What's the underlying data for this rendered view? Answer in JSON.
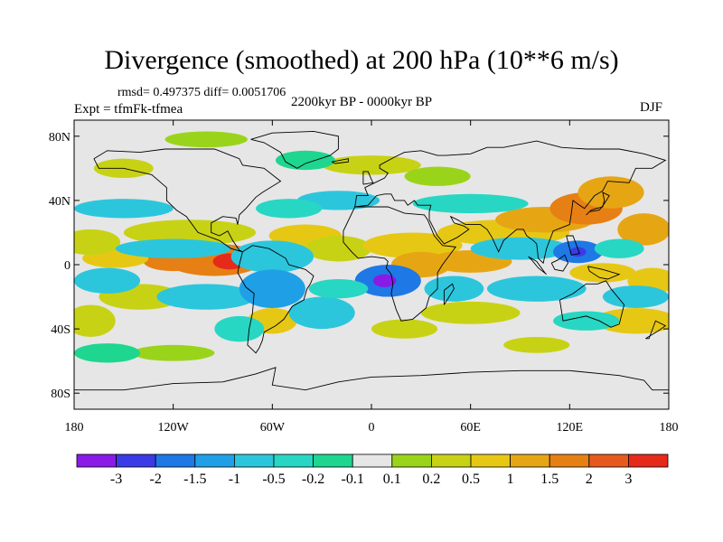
{
  "figure": {
    "title": "Divergence (smoothed) at 200 hPa (10**6 m/s)",
    "stats": "rmsd= 0.497375 diff= 0.0051706",
    "experiment": "Expt = tfmFk-tfmea",
    "period": "2200kyr BP - 0000kyr BP",
    "season": "DJF"
  },
  "axes": {
    "lon_ticks": [
      {
        "value": -180,
        "label": "180"
      },
      {
        "value": -120,
        "label": "120W"
      },
      {
        "value": -60,
        "label": "60W"
      },
      {
        "value": 0,
        "label": "0"
      },
      {
        "value": 60,
        "label": "60E"
      },
      {
        "value": 120,
        "label": "120E"
      },
      {
        "value": 180,
        "label": "180"
      }
    ],
    "lat_ticks": [
      {
        "value": 80,
        "label": "80N"
      },
      {
        "value": 40,
        "label": "40N"
      },
      {
        "value": 0,
        "label": "0"
      },
      {
        "value": -40,
        "label": "40S"
      },
      {
        "value": -80,
        "label": "80S"
      }
    ],
    "lon_range": [
      -180,
      180
    ],
    "lat_range": [
      -90,
      90
    ]
  },
  "colorbar": {
    "colors": [
      "#8a1ae6",
      "#3a3ae6",
      "#1e78e6",
      "#1fa0e6",
      "#2cc6dc",
      "#27d7c3",
      "#1ed68f",
      "#e6e6e6",
      "#9ad41a",
      "#c8d214",
      "#e6c814",
      "#e6a614",
      "#e68014",
      "#e65a1e",
      "#e62a1a"
    ],
    "labels": [
      "-3",
      "-2",
      "-1.5",
      "-1",
      "-0.5",
      "-0.2",
      "-0.1",
      "0.1",
      "0.2",
      "0.5",
      "1",
      "1.5",
      "2",
      "3"
    ]
  },
  "map_data": {
    "type": "contour_fill",
    "field": "divergence difference",
    "blobs": [
      {
        "lon": -95,
        "lat": 3,
        "rx": 30,
        "ry": 10,
        "level": 12
      },
      {
        "lon": -86,
        "lat": 2,
        "rx": 10,
        "ry": 5,
        "level": 14
      },
      {
        "lon": -120,
        "lat": 2,
        "rx": 18,
        "ry": 6,
        "level": 12
      },
      {
        "lon": -155,
        "lat": 4,
        "rx": 20,
        "ry": 6,
        "level": 10
      },
      {
        "lon": -170,
        "lat": 14,
        "rx": 18,
        "ry": 8,
        "level": 9
      },
      {
        "lon": -110,
        "lat": 20,
        "rx": 40,
        "ry": 8,
        "level": 9
      },
      {
        "lon": -40,
        "lat": 18,
        "rx": 22,
        "ry": 7,
        "level": 10
      },
      {
        "lon": -20,
        "lat": 10,
        "rx": 20,
        "ry": 8,
        "level": 9
      },
      {
        "lon": 25,
        "lat": 12,
        "rx": 30,
        "ry": 8,
        "level": 10
      },
      {
        "lon": 30,
        "lat": 0,
        "rx": 18,
        "ry": 8,
        "level": 11
      },
      {
        "lon": 60,
        "lat": 2,
        "rx": 25,
        "ry": 7,
        "level": 11
      },
      {
        "lon": 80,
        "lat": 20,
        "rx": 40,
        "ry": 8,
        "level": 10
      },
      {
        "lon": 105,
        "lat": 28,
        "rx": 30,
        "ry": 8,
        "level": 11
      },
      {
        "lon": 130,
        "lat": 35,
        "rx": 22,
        "ry": 10,
        "level": 12
      },
      {
        "lon": 145,
        "lat": 45,
        "rx": 20,
        "ry": 10,
        "level": 11
      },
      {
        "lon": 165,
        "lat": 22,
        "rx": 16,
        "ry": 10,
        "level": 11
      },
      {
        "lon": 0,
        "lat": 62,
        "rx": 30,
        "ry": 6,
        "level": 9
      },
      {
        "lon": 40,
        "lat": 55,
        "rx": 20,
        "ry": 6,
        "level": 8
      },
      {
        "lon": -150,
        "lat": 60,
        "rx": 18,
        "ry": 6,
        "level": 9
      },
      {
        "lon": -100,
        "lat": 78,
        "rx": 25,
        "ry": 5,
        "level": 8
      },
      {
        "lon": 140,
        "lat": -5,
        "rx": 20,
        "ry": 6,
        "level": 10
      },
      {
        "lon": 170,
        "lat": -10,
        "rx": 15,
        "ry": 8,
        "level": 10
      },
      {
        "lon": 160,
        "lat": -35,
        "rx": 25,
        "ry": 8,
        "level": 10
      },
      {
        "lon": 60,
        "lat": -30,
        "rx": 30,
        "ry": 7,
        "level": 9
      },
      {
        "lon": -60,
        "lat": -35,
        "rx": 15,
        "ry": 8,
        "level": 10
      },
      {
        "lon": -140,
        "lat": -20,
        "rx": 25,
        "ry": 8,
        "level": 9
      },
      {
        "lon": -170,
        "lat": -35,
        "rx": 15,
        "ry": 10,
        "level": 9
      },
      {
        "lon": 20,
        "lat": -40,
        "rx": 20,
        "ry": 6,
        "level": 9
      },
      {
        "lon": 100,
        "lat": -50,
        "rx": 20,
        "ry": 5,
        "level": 9
      },
      {
        "lon": -120,
        "lat": -55,
        "rx": 25,
        "ry": 5,
        "level": 8
      },
      {
        "lon": -150,
        "lat": 35,
        "rx": 30,
        "ry": 6,
        "level": 4
      },
      {
        "lon": -120,
        "lat": 10,
        "rx": 35,
        "ry": 6,
        "level": 4
      },
      {
        "lon": -60,
        "lat": 5,
        "rx": 25,
        "ry": 10,
        "level": 4
      },
      {
        "lon": -160,
        "lat": -10,
        "rx": 20,
        "ry": 8,
        "level": 4
      },
      {
        "lon": -100,
        "lat": -20,
        "rx": 30,
        "ry": 8,
        "level": 4
      },
      {
        "lon": -60,
        "lat": -15,
        "rx": 20,
        "ry": 12,
        "level": 3
      },
      {
        "lon": -30,
        "lat": -30,
        "rx": 20,
        "ry": 10,
        "level": 4
      },
      {
        "lon": 10,
        "lat": -10,
        "rx": 20,
        "ry": 10,
        "level": 2
      },
      {
        "lon": 8,
        "lat": -10,
        "rx": 7,
        "ry": 4,
        "level": 0
      },
      {
        "lon": 50,
        "lat": -15,
        "rx": 18,
        "ry": 8,
        "level": 4
      },
      {
        "lon": 90,
        "lat": 10,
        "rx": 30,
        "ry": 7,
        "level": 4
      },
      {
        "lon": 125,
        "lat": 8,
        "rx": 15,
        "ry": 7,
        "level": 2
      },
      {
        "lon": 125,
        "lat": 8,
        "rx": 5,
        "ry": 3,
        "level": 1
      },
      {
        "lon": 100,
        "lat": -15,
        "rx": 30,
        "ry": 8,
        "level": 4
      },
      {
        "lon": 160,
        "lat": -20,
        "rx": 20,
        "ry": 7,
        "level": 4
      },
      {
        "lon": -20,
        "lat": 40,
        "rx": 25,
        "ry": 6,
        "level": 4
      },
      {
        "lon": -50,
        "lat": 35,
        "rx": 20,
        "ry": 6,
        "level": 5
      },
      {
        "lon": 60,
        "lat": 38,
        "rx": 35,
        "ry": 6,
        "level": 5
      },
      {
        "lon": 150,
        "lat": 10,
        "rx": 15,
        "ry": 6,
        "level": 5
      },
      {
        "lon": -20,
        "lat": -15,
        "rx": 18,
        "ry": 6,
        "level": 5
      },
      {
        "lon": 130,
        "lat": -35,
        "rx": 20,
        "ry": 6,
        "level": 5
      },
      {
        "lon": -80,
        "lat": -40,
        "rx": 15,
        "ry": 8,
        "level": 5
      },
      {
        "lon": -40,
        "lat": 65,
        "rx": 18,
        "ry": 6,
        "level": 6
      },
      {
        "lon": -160,
        "lat": -55,
        "rx": 20,
        "ry": 6,
        "level": 6
      }
    ]
  }
}
